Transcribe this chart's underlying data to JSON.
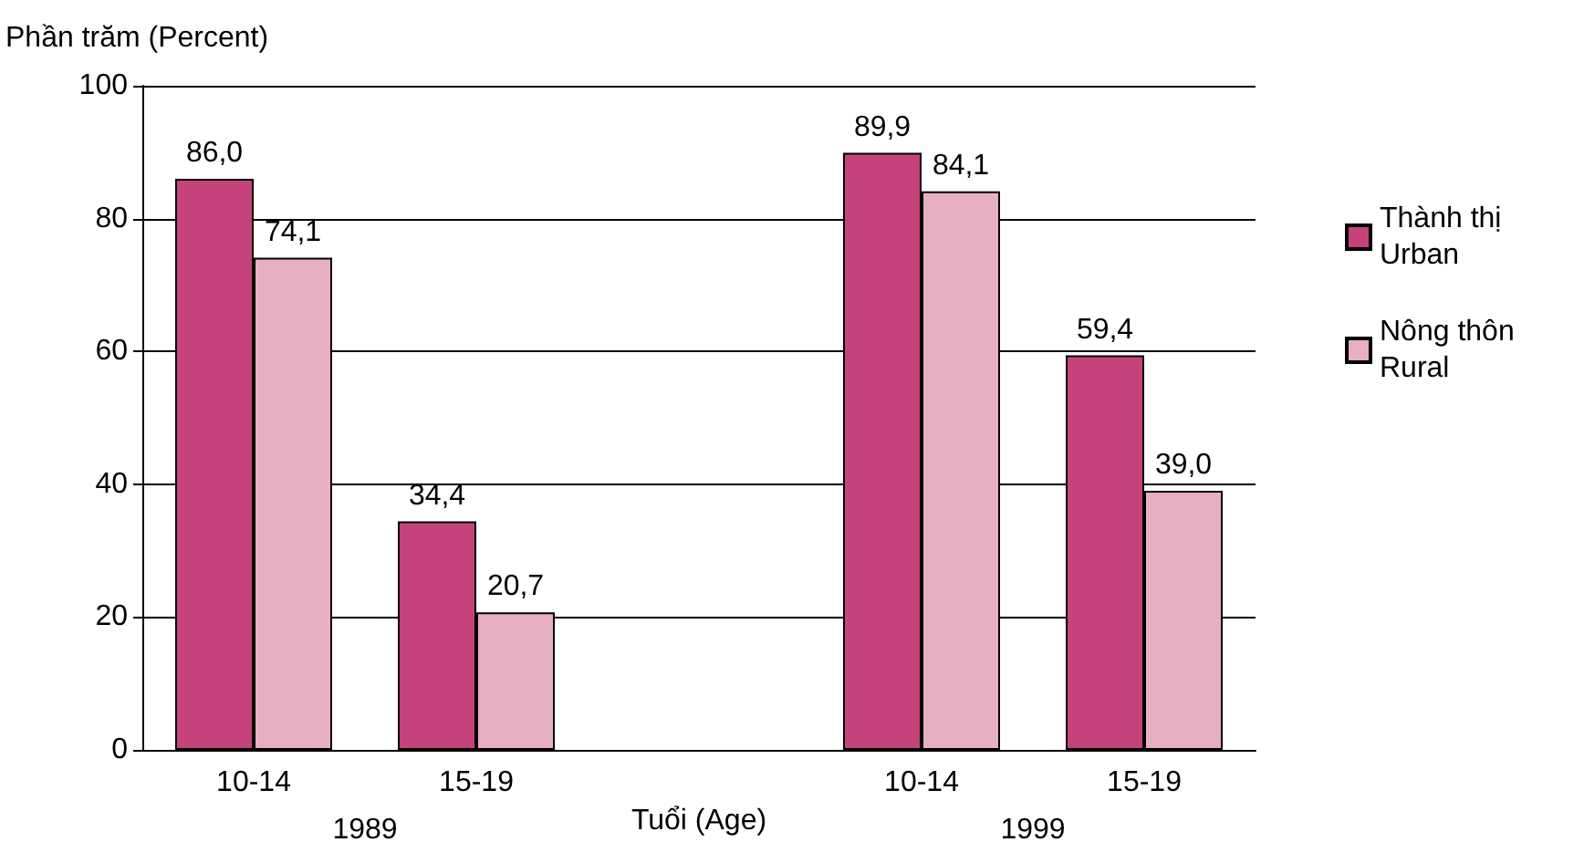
{
  "chart_data": {
    "type": "bar",
    "ylabel": "Phần trăm (Percent)",
    "xlabel": "Tuổi (Age)",
    "categories": [
      "10-14",
      "15-19",
      null,
      "10-14",
      "15-19"
    ],
    "series": [
      {
        "name": "Thành thị\nUrban",
        "color": "#c5427c",
        "values": [
          86.0,
          34.4,
          null,
          89.9,
          59.4
        ],
        "value_labels": [
          "86,0",
          "34,4",
          null,
          "89,9",
          "59,4"
        ]
      },
      {
        "name": "Nông thôn\nRural",
        "color": "#e6b0c0",
        "values": [
          74.1,
          20.7,
          null,
          84.1,
          39.0
        ],
        "value_labels": [
          "74,1",
          "20,7",
          null,
          "84,1",
          "39,0"
        ]
      }
    ],
    "ylim": [
      0,
      100
    ],
    "yticks": [
      0,
      20,
      40,
      60,
      80,
      100
    ],
    "grid": "y",
    "legend": "right",
    "annotations": [
      "1989",
      "1999"
    ]
  }
}
